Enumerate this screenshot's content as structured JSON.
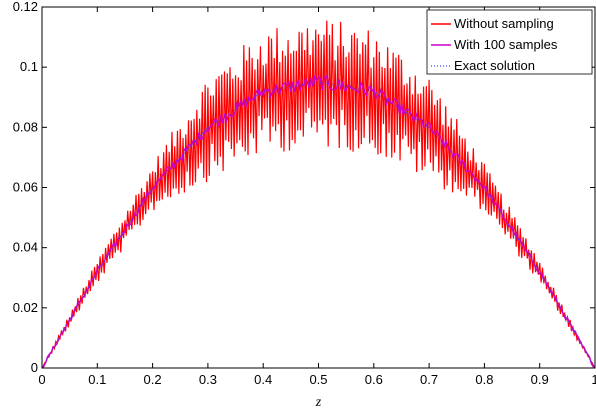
{
  "chart_data": {
    "type": "line",
    "title": "",
    "xlabel": "z",
    "ylabel": "",
    "xlim": [
      0,
      1
    ],
    "ylim": [
      0,
      0.12
    ],
    "xticks": [
      0,
      0.1,
      0.2,
      0.3,
      0.4,
      0.5,
      0.6,
      0.7,
      0.8,
      0.9,
      1
    ],
    "xtick_labels": [
      "0",
      "0.1",
      "0.2",
      "0.3",
      "0.4",
      "0.5",
      "0.6",
      "0.7",
      "0.8",
      "0.9",
      "1"
    ],
    "yticks": [
      0,
      0.02,
      0.04,
      0.06,
      0.08,
      0.1,
      0.12
    ],
    "ytick_labels": [
      "0",
      "0.02",
      "0.04",
      "0.06",
      "0.08",
      "0.1",
      "0.12"
    ],
    "grid": false,
    "legend": "top-right",
    "series": [
      {
        "name": "Without sampling",
        "color": "#ff0000",
        "style": "solid",
        "x": [
          0,
          0.1,
          0.2,
          0.3,
          0.4,
          0.5,
          0.6,
          0.7,
          0.8,
          0.9,
          1
        ],
        "y": [
          0,
          0.032,
          0.06,
          0.08,
          0.092,
          0.095,
          0.092,
          0.08,
          0.06,
          0.032,
          0
        ],
        "oscillation_amplitude": [
          0,
          0.004,
          0.008,
          0.018,
          0.021,
          0.022,
          0.021,
          0.018,
          0.008,
          0.004,
          0
        ]
      },
      {
        "name": "With 100 samples",
        "color": "#cc00cc",
        "style": "solid",
        "x": [
          0,
          0.1,
          0.2,
          0.3,
          0.4,
          0.5,
          0.6,
          0.7,
          0.8,
          0.9,
          1
        ],
        "y": [
          0,
          0.032,
          0.06,
          0.08,
          0.092,
          0.095,
          0.092,
          0.08,
          0.06,
          0.032,
          0
        ]
      },
      {
        "name": "Exact solution",
        "color": "#4040ff",
        "style": "dotted",
        "x": [
          0,
          0.1,
          0.2,
          0.3,
          0.4,
          0.5,
          0.6,
          0.7,
          0.8,
          0.9,
          1
        ],
        "y": [
          0,
          0.032,
          0.06,
          0.08,
          0.092,
          0.095,
          0.092,
          0.08,
          0.06,
          0.032,
          0
        ]
      }
    ]
  }
}
